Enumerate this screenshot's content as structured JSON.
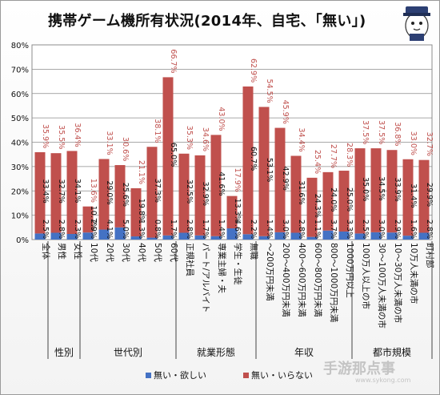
{
  "chart_data": {
    "type": "bar",
    "stacked": true,
    "title": "携帯ゲーム機所有状況(2014年、自宅、「無い」)",
    "ylim": [
      0,
      80
    ],
    "yticks": [
      "0%",
      "10%",
      "20%",
      "30%",
      "40%",
      "50%",
      "60%",
      "70%",
      "80%"
    ],
    "grid": true,
    "legend_position": "bottom",
    "categories": [
      "全体",
      "男性",
      "女性",
      "10代",
      "20代",
      "30代",
      "40代",
      "50代",
      "60代",
      "正規社員",
      "パート/アルバイト",
      "専業主婦・夫",
      "学生・生徒",
      "無職",
      "～200万円未満",
      "200～400万円未満",
      "400～600万円未満",
      "600～800万円未満",
      "800～1000万円未満",
      "1000万円以上",
      "100万人以上の市",
      "30～100万人未満の市",
      "10～30万人未満の市",
      "10万人未満の市",
      "町村部"
    ],
    "totals": [
      35.9,
      35.5,
      36.4,
      13.6,
      33.1,
      30.6,
      21.1,
      38.1,
      66.7,
      35.3,
      34.6,
      43.0,
      17.9,
      62.9,
      54.5,
      45.9,
      34.4,
      25.4,
      27.7,
      28.3,
      37.5,
      37.5,
      36.8,
      33.0,
      32.7
    ],
    "total_labels": [
      "35.9%",
      "35.5%",
      "36.4%",
      "13.6%",
      "33.1%",
      "30.6%",
      "21.1%",
      "38.1%",
      "66.7%",
      "35.3%",
      "34.6%",
      "43.0%",
      "17.9%",
      "62.9%",
      "54.5%",
      "45.9%",
      "34.4%",
      "25.4%",
      "27.7%",
      "28.3%",
      "37.5%",
      "37.5%",
      "36.8%",
      "33.0%",
      "32.7%"
    ],
    "series": [
      {
        "name": "無い・欲しい",
        "color": "#4472c4",
        "values": [
          2.5,
          2.8,
          2.3,
          2.9,
          4.1,
          5.0,
          1.3,
          0.8,
          1.7,
          2.8,
          1.7,
          1.4,
          4.6,
          2.2,
          1.4,
          3.0,
          2.8,
          1.1,
          3.7,
          3.3,
          2.5,
          3.0,
          2.9,
          1.6,
          2.8
        ],
        "labels": [
          "2.5%",
          "2.8%",
          "2.3%",
          "2.9%",
          "4.1%",
          "5.0%",
          "1.3%",
          "0.8%",
          "1.7%",
          "2.8%",
          "1.7%",
          "1.4%",
          "4.6%",
          "2.2%",
          "1.4%",
          "3.0%",
          "2.8%",
          "1.1%",
          "3.7%",
          "3.3%",
          "2.5%",
          "3.0%",
          "2.9%",
          "1.6%",
          "2.8%"
        ]
      },
      {
        "name": "無い・いらない",
        "color": "#c0504d",
        "values": [
          33.4,
          32.7,
          34.1,
          10.7,
          29.0,
          25.6,
          19.8,
          37.3,
          65.0,
          32.5,
          32.9,
          41.6,
          13.3,
          60.7,
          53.1,
          42.9,
          31.6,
          24.3,
          24.0,
          25.0,
          35.0,
          34.5,
          33.9,
          31.4,
          29.9
        ],
        "labels": [
          "33.4%",
          "32.7%",
          "34.1%",
          "10.7%",
          "29.0%",
          "25.6%",
          "19.8%",
          "37.3%",
          "65.0%",
          "32.5%",
          "32.9%",
          "41.6%",
          "13.3%",
          "60.7%",
          "53.1%",
          "42.9%",
          "31.6%",
          "24.3%",
          "24.0%",
          "25.0%",
          "35.0%",
          "34.5%",
          "33.9%",
          "31.4%",
          "29.9%"
        ]
      }
    ],
    "groups": [
      {
        "label": "性別",
        "start": 1,
        "end": 2
      },
      {
        "label": "世代別",
        "start": 3,
        "end": 8
      },
      {
        "label": "就業形態",
        "start": 9,
        "end": 13
      },
      {
        "label": "年収",
        "start": 14,
        "end": 19
      },
      {
        "label": "都市規模",
        "start": 20,
        "end": 24
      }
    ]
  },
  "watermark": {
    "text": "手游那点事",
    "sub": "www.sykong.com"
  }
}
